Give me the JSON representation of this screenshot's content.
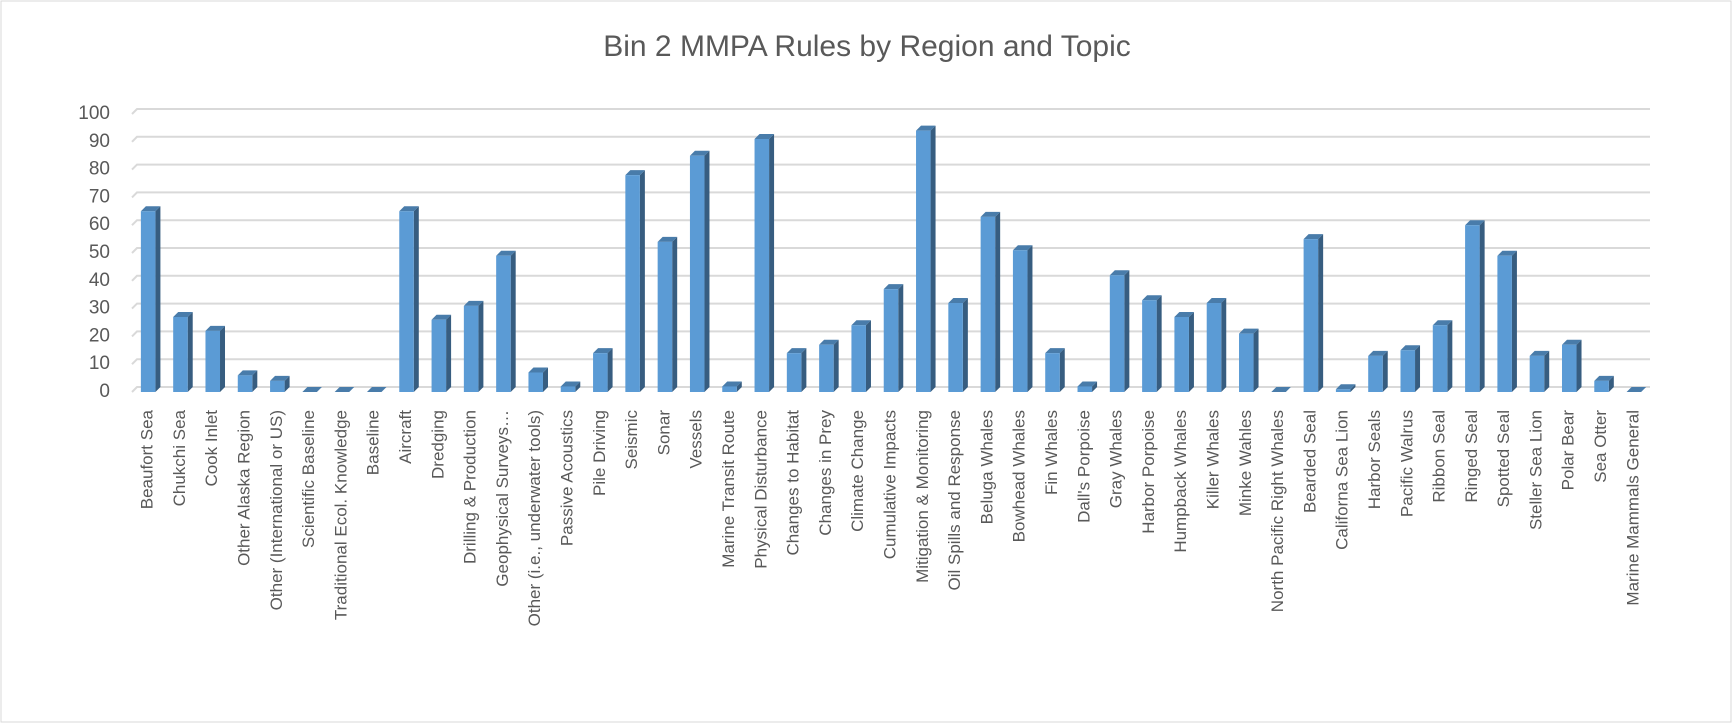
{
  "chart_data": {
    "type": "bar",
    "title": "Bin 2 MMPA Rules by Region and Topic",
    "categories": [
      "Beaufort Sea",
      "Chukchi Sea",
      "Cook Inlet",
      "Other Alaska Region",
      "Other (International or US)",
      "Scientific Baseline",
      "Traditional Ecol. Knowledge",
      "Baseline",
      "Aircraft",
      "Dredging",
      "Drilling & Production",
      "Geophysical Surveys…",
      "Other (i.e., underwater tools)",
      "Passive Acoustics",
      "Pile Driving",
      "Seismic",
      "Sonar",
      "Vessels",
      "Marine Transit Route",
      "Physical Disturbance",
      "Changes to Habitat",
      "Changes in Prey",
      "Climate Change",
      "Cumulative Impacts",
      "Mitigation & Monitoring",
      "Oil Spills and Response",
      "Beluga Whales",
      "Bowhead Whales",
      "Fin Whales",
      "Dall's Porpoise",
      "Gray Whales",
      "Harbor Porpoise",
      "Humpback Whales",
      "Killer Whales",
      "Minke Wahles",
      "North Pacific Right Whales",
      "Bearded Seal",
      "Californa Sea Lion",
      "Harbor Seals",
      "Pacific Walrus",
      "Ribbon Seal",
      "Ringed Seal",
      "Spotted Seal",
      "Steller Sea Lion",
      "Polar Bear",
      "Sea Otter",
      "Marine Mammals General"
    ],
    "values": [
      65,
      27,
      22,
      6,
      4,
      0,
      0,
      0,
      65,
      26,
      31,
      49,
      7,
      2,
      14,
      78,
      54,
      85,
      2,
      91,
      14,
      17,
      24,
      37,
      94,
      32,
      63,
      51,
      14,
      2,
      42,
      33,
      27,
      32,
      21,
      0,
      55,
      1,
      13,
      15,
      24,
      60,
      49,
      13,
      17,
      4,
      0
    ],
    "color": "#5b9bd5",
    "ylim": [
      0,
      100
    ],
    "yticks": [
      0,
      10,
      20,
      30,
      40,
      50,
      60,
      70,
      80,
      90,
      100
    ],
    "grid": true
  }
}
